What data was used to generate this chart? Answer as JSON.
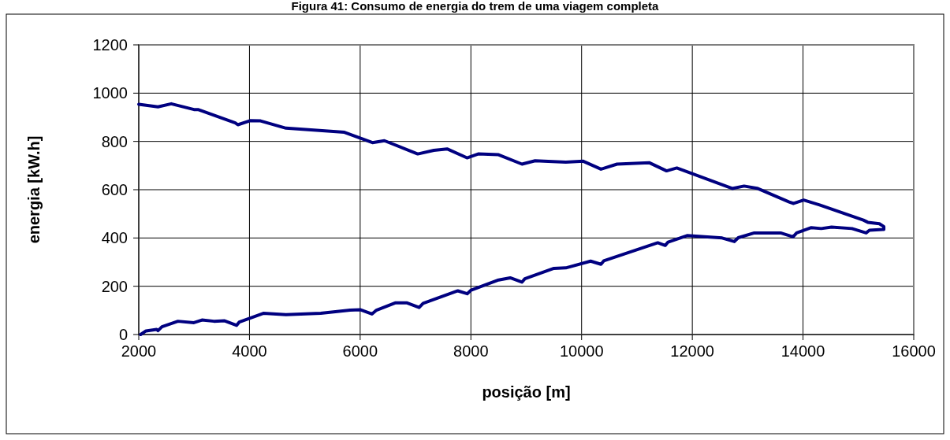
{
  "chart_data": {
    "type": "line",
    "title": "Figura 41: Consumo de energia do trem de uma viagem completa",
    "xlabel": "posição [m]",
    "ylabel": "energia [kW.h]",
    "xlim": [
      2000,
      16000
    ],
    "xticks": [
      2000,
      4000,
      6000,
      8000,
      10000,
      12000,
      14000,
      16000
    ],
    "ylim": [
      0,
      1200
    ],
    "yticks": [
      0,
      200,
      400,
      600,
      800,
      1000,
      1200
    ],
    "grid": true,
    "marker": "none",
    "line_style": "solid",
    "series": [
      {
        "color": "#000080",
        "x": [
          2034,
          2130,
          2323,
          2347,
          2419,
          2708,
          2997,
          3142,
          3359,
          3552,
          3769,
          3817,
          4250,
          4660,
          5287,
          5817,
          6000,
          6212,
          6294,
          6631,
          6848,
          7065,
          7137,
          7764,
          7933,
          8005,
          8500,
          8710,
          8922,
          8975,
          9500,
          9715,
          10163,
          10350,
          10400,
          11376,
          11510,
          11562,
          11905,
          12538,
          12760,
          12830,
          13120,
          13595,
          13820,
          13885,
          14150,
          14330,
          14515,
          14885,
          15140,
          15200,
          15440,
          15460,
          15460,
          15380,
          15170,
          15090,
          14300,
          14010,
          13830,
          13750,
          13170,
          12935,
          12720,
          11720,
          11535,
          11220,
          10640,
          10350,
          10030,
          9715,
          9160,
          8923,
          8500,
          8132,
          7930,
          7570,
          7330,
          7040,
          6438,
          6221,
          5716,
          4660,
          4200,
          4010,
          3790,
          3743,
          3070,
          2997,
          2587,
          2347,
          2000
        ],
        "values": [
          0,
          15,
          21,
          16,
          32,
          55,
          49,
          60,
          55,
          57,
          38,
          52,
          88,
          82,
          88,
          101,
          103,
          85,
          101,
          131,
          131,
          112,
          129,
          181,
          169,
          184,
          226,
          235,
          217,
          231,
          274,
          276,
          304,
          291,
          305,
          380,
          369,
          383,
          410,
          400,
          385,
          401,
          421,
          421,
          405,
          421,
          443,
          439,
          445,
          439,
          421,
          432,
          435,
          435,
          447,
          459,
          465,
          474,
          537,
          557,
          543,
          549,
          606,
          615,
          605,
          690,
          678,
          712,
          706,
          685,
          718,
          714,
          720,
          706,
          745,
          748,
          732,
          769,
          763,
          748,
          803,
          795,
          838,
          855,
          885,
          886,
          869,
          877,
          932,
          932,
          956,
          943,
          954
        ]
      }
    ]
  }
}
